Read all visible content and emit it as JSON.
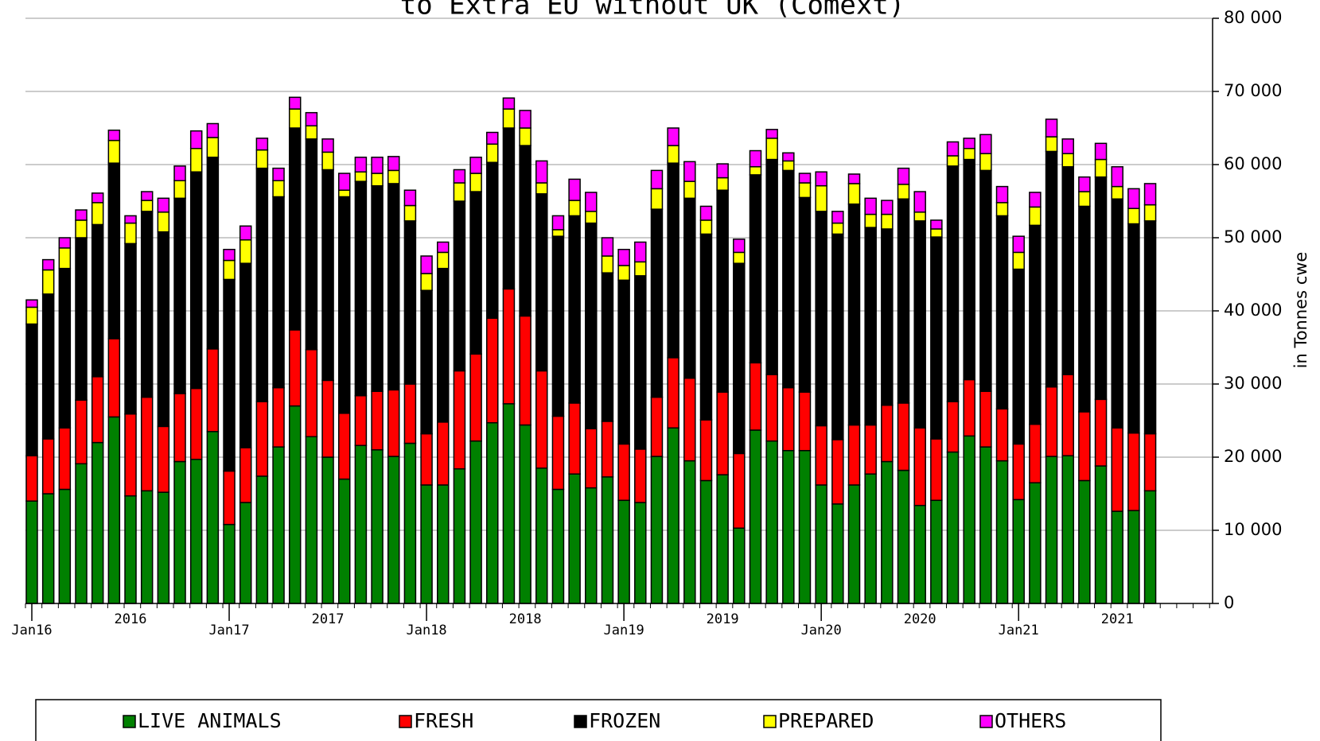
{
  "chart_data": {
    "type": "stacked_bar",
    "title": "to Extra EU without UK (Comext)",
    "y_label": "in Tonnes cwe",
    "categories": [
      "Jan16",
      null,
      null,
      null,
      null,
      null,
      null,
      null,
      null,
      null,
      null,
      null,
      "Jan17",
      null,
      null,
      null,
      null,
      null,
      null,
      null,
      null,
      null,
      null,
      null,
      "Jan18",
      null,
      null,
      null,
      null,
      null,
      null,
      null,
      null,
      null,
      null,
      null,
      "Jan19",
      null,
      null,
      null,
      null,
      null,
      null,
      null,
      null,
      null,
      null,
      null,
      "Jan20",
      null,
      null,
      null,
      null,
      null,
      null,
      null,
      null,
      null,
      null,
      null,
      "Jan21",
      null,
      null,
      null,
      null,
      null,
      null,
      null,
      null
    ],
    "year_labels": [
      "2016",
      "2017",
      "2018",
      "2019",
      "2020",
      "2021"
    ],
    "series": [
      {
        "name": "LIVE ANIMALS",
        "color": "#008000",
        "values": [
          14000,
          15000,
          15600,
          19100,
          22000,
          25500,
          14700,
          15400,
          15200,
          19400,
          19700,
          23500,
          10800,
          13800,
          17400,
          21400,
          27000,
          22800,
          20000,
          17000,
          21600,
          21000,
          20100,
          21900,
          16200,
          16200,
          18400,
          22200,
          24700,
          27300,
          24400,
          18500,
          15600,
          17700,
          15800,
          17300,
          14100,
          13800,
          20100,
          24000,
          19500,
          16800,
          17600,
          10300,
          23700,
          22200,
          20900,
          20900,
          16200,
          13600,
          16200,
          17700,
          19400,
          18200,
          13400,
          14100,
          20700,
          22900,
          21400,
          19500,
          14200,
          16500,
          20100,
          20200,
          16800,
          18800,
          12600,
          12700,
          15400
        ]
      },
      {
        "name": "FRESH",
        "color": "#ff0000",
        "values": [
          6200,
          7500,
          8400,
          8700,
          9000,
          10700,
          11200,
          12800,
          9000,
          9300,
          9700,
          11300,
          7300,
          7500,
          10200,
          8100,
          10400,
          11900,
          10500,
          9000,
          6800,
          8000,
          9100,
          8100,
          7000,
          8600,
          13400,
          11900,
          14300,
          15700,
          14900,
          13300,
          10000,
          9700,
          8100,
          7600,
          7700,
          7300,
          8100,
          9600,
          11300,
          8300,
          11300,
          10200,
          9200,
          9100,
          8600,
          8000,
          8100,
          8800,
          8200,
          6700,
          7700,
          9200,
          10600,
          8400,
          6900,
          7700,
          7600,
          7100,
          7600,
          8000,
          9500,
          11100,
          9400,
          9100,
          11400,
          10600,
          7800
        ]
      },
      {
        "name": "FROZEN",
        "color": "#000000",
        "values": [
          18000,
          19800,
          21800,
          22200,
          20800,
          24000,
          23300,
          25400,
          26600,
          26700,
          29600,
          26200,
          26200,
          25200,
          31900,
          26100,
          27600,
          28800,
          28800,
          29600,
          29300,
          28100,
          28200,
          22300,
          19600,
          21000,
          23200,
          22200,
          21300,
          22000,
          23300,
          24200,
          24600,
          25600,
          28100,
          20300,
          22400,
          23700,
          25700,
          26600,
          24600,
          25400,
          27600,
          26000,
          25700,
          29400,
          29700,
          26600,
          29300,
          28100,
          30200,
          27000,
          24100,
          27900,
          28300,
          27600,
          32200,
          30100,
          30200,
          26400,
          23900,
          27200,
          32200,
          28400,
          28100,
          30400,
          31300,
          28600,
          29100
        ]
      },
      {
        "name": "PREPARED",
        "color": "#ffff00",
        "values": [
          2300,
          3300,
          2800,
          2400,
          3000,
          3100,
          2800,
          1500,
          2700,
          2400,
          3200,
          2700,
          2600,
          3200,
          2500,
          2200,
          2600,
          1800,
          2400,
          900,
          1300,
          1700,
          1800,
          2100,
          2300,
          2200,
          2500,
          2500,
          2500,
          2600,
          2400,
          1500,
          900,
          2100,
          1600,
          2300,
          2000,
          1900,
          2800,
          2400,
          2300,
          1900,
          1700,
          1500,
          1100,
          2900,
          1300,
          2000,
          3500,
          1500,
          2800,
          1800,
          2000,
          2000,
          1200,
          1100,
          1400,
          1500,
          2300,
          1800,
          2300,
          2500,
          2000,
          1800,
          2000,
          2400,
          1700,
          2100,
          2200
        ]
      },
      {
        "name": "OTHERS",
        "color": "#ff00ff",
        "values": [
          1000,
          1400,
          1400,
          1400,
          1300,
          1400,
          1000,
          1200,
          1900,
          2000,
          2400,
          1900,
          1500,
          1900,
          1600,
          1700,
          1600,
          1800,
          1800,
          2300,
          2000,
          2200,
          1900,
          2100,
          2400,
          1400,
          1800,
          2200,
          1600,
          1500,
          2400,
          3000,
          1900,
          2900,
          2600,
          2500,
          2200,
          2700,
          2500,
          2400,
          2700,
          1900,
          1900,
          1800,
          2200,
          1200,
          1100,
          1300,
          1900,
          1600,
          1300,
          2200,
          1900,
          2200,
          2800,
          1200,
          1900,
          1400,
          2600,
          2200,
          2200,
          2000,
          2400,
          2000,
          2000,
          2200,
          2700,
          2700,
          2900
        ]
      }
    ],
    "ylim": [
      0,
      80000
    ],
    "yticks": [
      0,
      {
        "value": 10000,
        "label": "10 000"
      },
      {
        "value": 20000,
        "label": "20 000"
      },
      {
        "value": 30000,
        "label": "30 000"
      },
      {
        "value": 40000,
        "label": "40 000"
      },
      {
        "value": 50000,
        "label": "50 000"
      },
      {
        "value": 60000,
        "label": "60 000"
      },
      {
        "value": 70000,
        "label": "70 000"
      },
      {
        "value": 80000,
        "label": "80 000"
      }
    ],
    "y_axis_side": "right",
    "grid": true,
    "legend": "bottom"
  }
}
